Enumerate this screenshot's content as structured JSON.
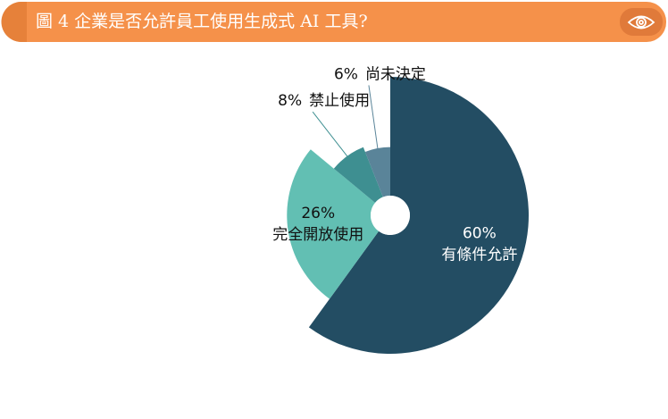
{
  "chart_data": {
    "type": "pie",
    "title": "圖 4 企業是否允許員工使用生成式 AI 工具?",
    "categories": [
      "有條件允許",
      "完全開放使用",
      "禁止使用",
      "尚未決定"
    ],
    "values": [
      60,
      26,
      8,
      6
    ],
    "value_labels": [
      "60%",
      "26%",
      "8%",
      "6%"
    ],
    "colors": [
      "#234d63",
      "#62bfb3",
      "#3e8f91",
      "#5a8499"
    ]
  }
}
